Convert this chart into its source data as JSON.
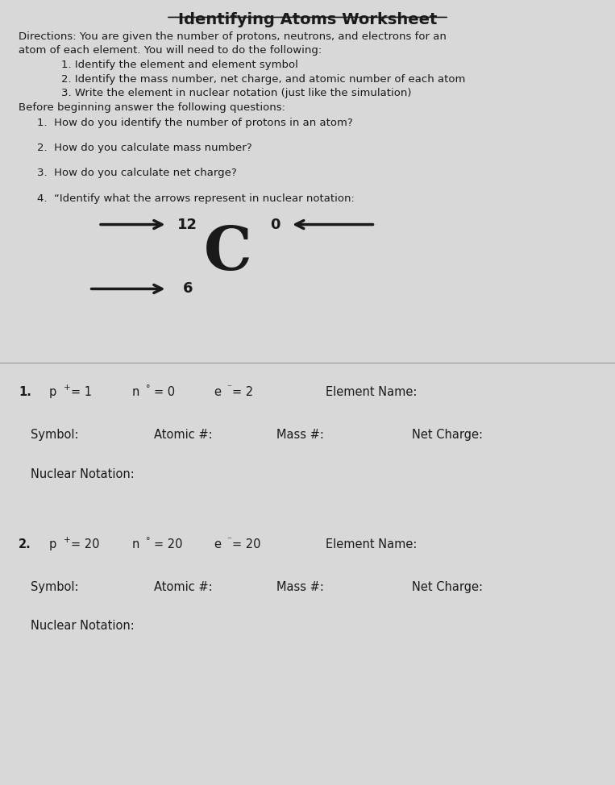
{
  "title": "Identifying Atoms Worksheet",
  "bg_color": "#d8d8d8",
  "text_color": "#1a1a1a",
  "directions_line1": "Directions: You are given the number of protons, neutrons, and electrons for an",
  "directions_line2": "atom of each element. You will need to do the following:",
  "item1": "1. Identify the element and element symbol",
  "item2": "2. Identify the mass number, net charge, and atomic number of each atom",
  "item3": "3. Write the element in nuclear notation (just like the simulation)",
  "before": "Before beginning answer the following questions:",
  "q1": "1.  How do you identify the number of protons in an atom?",
  "q2": "2.  How do you calculate mass number?",
  "q3": "3.  How do you calculate net charge?",
  "q4": "4.  “Identify what the arrows represent in nuclear notation:",
  "nuclear_symbol": "C",
  "nuclear_top_left": "12",
  "nuclear_top_right": "0",
  "nuclear_bottom_left": "6",
  "prob1_sym": "Symbol:",
  "prob1_atomic": "Atomic #:",
  "prob1_mass": "Mass #:",
  "prob1_charge": "Net Charge:",
  "prob1_nuclear": "Nuclear Notation:",
  "prob2_sym": "Symbol:",
  "prob2_atomic": "Atomic #:",
  "prob2_mass": "Mass #:",
  "prob2_charge": "Net Charge:",
  "prob2_nuclear": "Nuclear Notation:"
}
